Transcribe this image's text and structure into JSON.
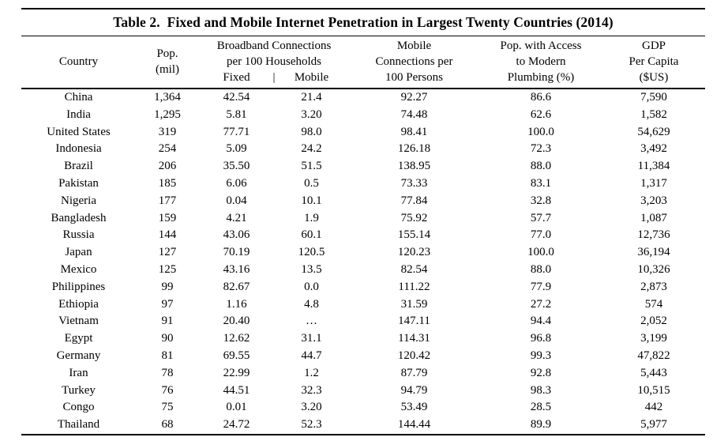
{
  "colors": {
    "background": "#ffffff",
    "text": "#000000",
    "rule": "#000000"
  },
  "table": {
    "title": "Table 2.  Fixed and Mobile Internet Penetration in Largest Twenty Countries (2014)",
    "header": {
      "country": "Country",
      "pop": [
        "Pop.",
        "(mil)"
      ],
      "broadband": [
        "Broadband Connections",
        "per 100 Households"
      ],
      "broadband_fixed": "Fixed",
      "broadband_bar": "|",
      "broadband_mobile": "Mobile",
      "mobile_connections": [
        "Mobile",
        "Connections per",
        "100 Persons"
      ],
      "plumbing": [
        "Pop. with Access",
        "to Modern",
        "Plumbing (%)"
      ],
      "gdp": [
        "GDP",
        "Per Capita",
        "($US)"
      ]
    },
    "columns_order": [
      "country",
      "pop",
      "fixed",
      "mobile",
      "mobile_conn",
      "plumbing",
      "gdp"
    ],
    "rows": [
      {
        "country": "China",
        "pop": "1,364",
        "fixed": "42.54",
        "mobile": "21.4",
        "mobile_conn": "92.27",
        "plumbing": "86.6",
        "gdp": "7,590"
      },
      {
        "country": "India",
        "pop": "1,295",
        "fixed": "5.81",
        "mobile": "3.20",
        "mobile_conn": "74.48",
        "plumbing": "62.6",
        "gdp": "1,582"
      },
      {
        "country": "United States",
        "pop": "319",
        "fixed": "77.71",
        "mobile": "98.0",
        "mobile_conn": "98.41",
        "plumbing": "100.0",
        "gdp": "54,629"
      },
      {
        "country": "Indonesia",
        "pop": "254",
        "fixed": "5.09",
        "mobile": "24.2",
        "mobile_conn": "126.18",
        "plumbing": "72.3",
        "gdp": "3,492"
      },
      {
        "country": "Brazil",
        "pop": "206",
        "fixed": "35.50",
        "mobile": "51.5",
        "mobile_conn": "138.95",
        "plumbing": "88.0",
        "gdp": "11,384"
      },
      {
        "country": "Pakistan",
        "pop": "185",
        "fixed": "6.06",
        "mobile": "0.5",
        "mobile_conn": "73.33",
        "plumbing": "83.1",
        "gdp": "1,317"
      },
      {
        "country": "Nigeria",
        "pop": "177",
        "fixed": "0.04",
        "mobile": "10.1",
        "mobile_conn": "77.84",
        "plumbing": "32.8",
        "gdp": "3,203"
      },
      {
        "country": "Bangladesh",
        "pop": "159",
        "fixed": "4.21",
        "mobile": "1.9",
        "mobile_conn": "75.92",
        "plumbing": "57.7",
        "gdp": "1,087"
      },
      {
        "country": "Russia",
        "pop": "144",
        "fixed": "43.06",
        "mobile": "60.1",
        "mobile_conn": "155.14",
        "plumbing": "77.0",
        "gdp": "12,736"
      },
      {
        "country": "Japan",
        "pop": "127",
        "fixed": "70.19",
        "mobile": "120.5",
        "mobile_conn": "120.23",
        "plumbing": "100.0",
        "gdp": "36,194"
      },
      {
        "country": "Mexico",
        "pop": "125",
        "fixed": "43.16",
        "mobile": "13.5",
        "mobile_conn": "82.54",
        "plumbing": "88.0",
        "gdp": "10,326"
      },
      {
        "country": "Philippines",
        "pop": "99",
        "fixed": "82.67",
        "mobile": "0.0",
        "mobile_conn": "111.22",
        "plumbing": "77.9",
        "gdp": "2,873"
      },
      {
        "country": "Ethiopia",
        "pop": "97",
        "fixed": "1.16",
        "mobile": "4.8",
        "mobile_conn": "31.59",
        "plumbing": "27.2",
        "gdp": "574"
      },
      {
        "country": "Vietnam",
        "pop": "91",
        "fixed": "20.40",
        "mobile": "…",
        "mobile_conn": "147.11",
        "plumbing": "94.4",
        "gdp": "2,052"
      },
      {
        "country": "Egypt",
        "pop": "90",
        "fixed": "12.62",
        "mobile": "31.1",
        "mobile_conn": "114.31",
        "plumbing": "96.8",
        "gdp": "3,199"
      },
      {
        "country": "Germany",
        "pop": "81",
        "fixed": "69.55",
        "mobile": "44.7",
        "mobile_conn": "120.42",
        "plumbing": "99.3",
        "gdp": "47,822"
      },
      {
        "country": "Iran",
        "pop": "78",
        "fixed": "22.99",
        "mobile": "1.2",
        "mobile_conn": "87.79",
        "plumbing": "92.8",
        "gdp": "5,443"
      },
      {
        "country": "Turkey",
        "pop": "76",
        "fixed": "44.51",
        "mobile": "32.3",
        "mobile_conn": "94.79",
        "plumbing": "98.3",
        "gdp": "10,515"
      },
      {
        "country": "Congo",
        "pop": "75",
        "fixed": "0.01",
        "mobile": "3.20",
        "mobile_conn": "53.49",
        "plumbing": "28.5",
        "gdp": "442"
      },
      {
        "country": "Thailand",
        "pop": "68",
        "fixed": "24.72",
        "mobile": "52.3",
        "mobile_conn": "144.44",
        "plumbing": "89.9",
        "gdp": "5,977"
      }
    ]
  }
}
